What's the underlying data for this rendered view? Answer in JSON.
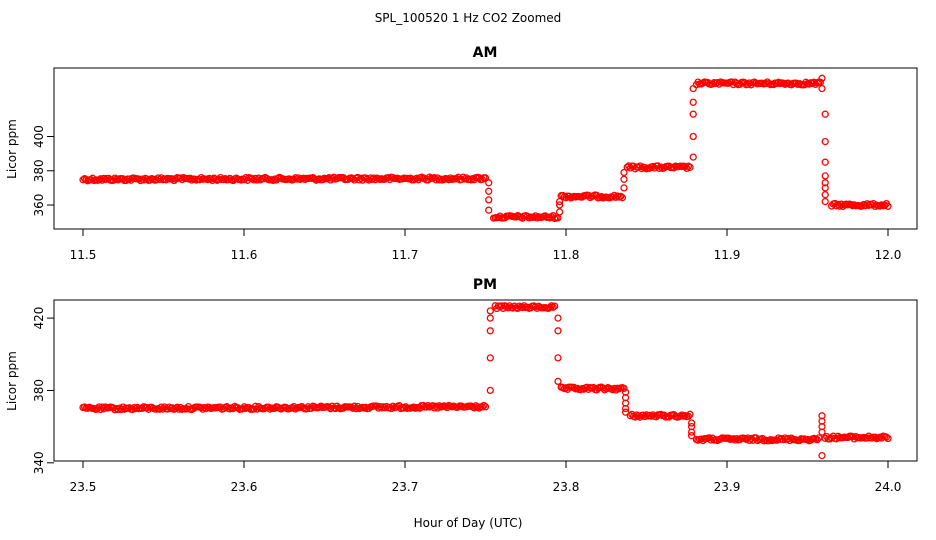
{
  "figure": {
    "title": "SPL_100520  1 Hz CO2 Zoomed",
    "xlabel": "Hour of Day (UTC)"
  },
  "chart_data": [
    {
      "type": "scatter",
      "title": "AM",
      "ylabel": "Licor ppm",
      "xlim": [
        11.5,
        12.0
      ],
      "ylim": [
        346,
        440
      ],
      "xticks": [
        "11.5",
        "11.6",
        "11.7",
        "11.8",
        "11.9",
        "12.0"
      ],
      "yticks": [
        "360",
        "380",
        "400"
      ],
      "ytick_values": [
        360,
        380,
        400
      ],
      "marker": "open-circle",
      "color": "#ff0000",
      "segments": [
        {
          "x": [
            11.5,
            11.75
          ],
          "y": [
            375,
            375.5
          ]
        },
        {
          "x": [
            11.755,
            11.795
          ],
          "y": [
            353,
            353
          ]
        },
        {
          "x": [
            11.797,
            11.835
          ],
          "y": [
            365,
            365
          ]
        },
        {
          "x": [
            11.838,
            11.877
          ],
          "y": [
            382,
            382
          ]
        },
        {
          "x": [
            11.881,
            11.958
          ],
          "y": [
            431,
            431
          ]
        },
        {
          "x": [
            11.965,
            12.0
          ],
          "y": [
            360,
            360
          ]
        }
      ],
      "transitions": [
        {
          "x": 11.752,
          "y": [
            373,
            368,
            363,
            357
          ]
        },
        {
          "x": 11.796,
          "y": [
            356,
            360,
            362
          ]
        },
        {
          "x": 11.836,
          "y": [
            370,
            375,
            379
          ]
        },
        {
          "x": 11.879,
          "y": [
            388,
            400,
            413,
            420,
            428
          ]
        },
        {
          "x": 11.959,
          "y": [
            434,
            428
          ]
        },
        {
          "x": 11.961,
          "y": [
            413,
            397,
            385,
            377,
            373,
            370,
            366,
            362
          ]
        }
      ]
    },
    {
      "type": "scatter",
      "title": "PM",
      "ylabel": "Licor ppm",
      "xlim": [
        23.5,
        24.0
      ],
      "ylim": [
        341,
        430
      ],
      "xticks": [
        "23.5",
        "23.6",
        "23.7",
        "23.8",
        "23.9",
        "24.0"
      ],
      "yticks": [
        "340",
        "380",
        "420"
      ],
      "ytick_values": [
        340,
        380,
        420
      ],
      "marker": "open-circle",
      "color": "#ff0000",
      "segments": [
        {
          "x": [
            23.5,
            23.75
          ],
          "y": [
            370,
            371
          ]
        },
        {
          "x": [
            23.756,
            23.793
          ],
          "y": [
            426,
            426
          ]
        },
        {
          "x": [
            23.797,
            23.836
          ],
          "y": [
            381,
            381
          ]
        },
        {
          "x": [
            23.84,
            23.877
          ],
          "y": [
            366,
            366
          ]
        },
        {
          "x": [
            23.881,
            23.957
          ],
          "y": [
            353,
            353
          ]
        },
        {
          "x": [
            23.961,
            24.0
          ],
          "y": [
            354,
            354
          ]
        }
      ],
      "transitions": [
        {
          "x": 23.753,
          "y": [
            380,
            398,
            413,
            420,
            424
          ]
        },
        {
          "x": 23.795,
          "y": [
            420,
            413,
            398,
            385
          ]
        },
        {
          "x": 23.837,
          "y": [
            379,
            376,
            373,
            370,
            368
          ]
        },
        {
          "x": 23.878,
          "y": [
            362,
            360,
            357,
            355
          ]
        },
        {
          "x": 23.959,
          "y": [
            344,
            357,
            360,
            363,
            366
          ]
        }
      ]
    }
  ]
}
